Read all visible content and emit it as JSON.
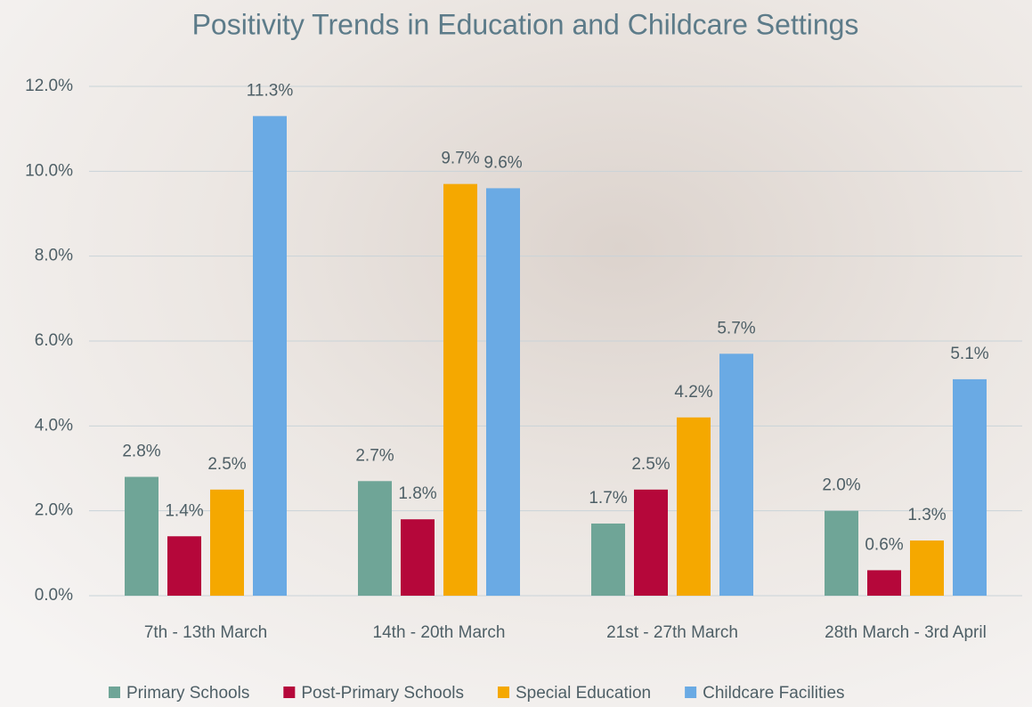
{
  "chart_data": {
    "type": "bar",
    "title": "Positivity Trends in Education and Childcare Settings",
    "categories": [
      "7th - 13th March",
      "14th - 20th March",
      "21st - 27th March",
      "28th March - 3rd April"
    ],
    "series": [
      {
        "name": "Primary Schools",
        "color": "#6fa597",
        "values": [
          2.8,
          2.7,
          1.7,
          2.0
        ],
        "value_labels": [
          "2.8%",
          "2.7%",
          "1.7%",
          "2.0%"
        ]
      },
      {
        "name": "Post-Primary Schools",
        "color": "#b5073a",
        "values": [
          1.4,
          1.8,
          2.5,
          0.6
        ],
        "value_labels": [
          "1.4%",
          "1.8%",
          "2.5%",
          "0.6%"
        ]
      },
      {
        "name": "Special Education",
        "color": "#f5a800",
        "values": [
          2.5,
          9.7,
          4.2,
          1.3
        ],
        "value_labels": [
          "2.5%",
          "9.7%",
          "4.2%",
          "1.3%"
        ]
      },
      {
        "name": "Childcare Facilities",
        "color": "#6aaae4",
        "values": [
          11.3,
          9.6,
          5.7,
          5.1
        ],
        "value_labels": [
          "11.3%",
          "9.6%",
          "5.7%",
          "5.1%"
        ]
      }
    ],
    "ylim": [
      0,
      12
    ],
    "yticks": [
      {
        "value": 0,
        "label": "0.0%"
      },
      {
        "value": 2,
        "label": "2.0%"
      },
      {
        "value": 4,
        "label": "4.0%"
      },
      {
        "value": 6,
        "label": "6.0%"
      },
      {
        "value": 8,
        "label": "8.0%"
      },
      {
        "value": 10,
        "label": "10.0%"
      },
      {
        "value": 12,
        "label": "12.0%"
      }
    ],
    "grid": true,
    "legend": "bottom"
  }
}
